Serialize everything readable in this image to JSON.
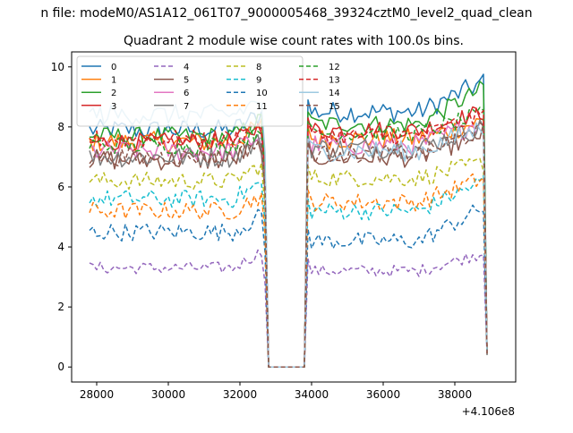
{
  "suptitle": "n file: modeM0/AS1A12_061T07_9000005468_39324cztM0_level2_quad_clean",
  "chart_data": {
    "type": "line",
    "title": "Quadrant 2 module wise count rates with 100.0s bins.",
    "xlabel": "",
    "ylabel": "",
    "x_offset_label": "+4.106e8",
    "xlim": [
      27300,
      39700
    ],
    "ylim": [
      -0.5,
      10.5
    ],
    "xticks": [
      28000,
      30000,
      32000,
      34000,
      36000,
      38000
    ],
    "xtick_labels": [
      "28000",
      "30000",
      "32000",
      "34000",
      "36000",
      "38000"
    ],
    "yticks": [
      0,
      2,
      4,
      6,
      8,
      10
    ],
    "ytick_labels": [
      "0",
      "2",
      "4",
      "6",
      "8",
      "10"
    ],
    "grid": false,
    "legend_position": "top-left",
    "legend_columns": 4,
    "segments": [
      [
        27800,
        32700
      ],
      [
        33900,
        38900
      ]
    ],
    "gap_x": [
      32800,
      33800
    ],
    "series": [
      {
        "name": "0",
        "color": "#1f77b4",
        "dash": "solid",
        "level1": 7.9,
        "level2": 8.5,
        "amp": 0.35,
        "end2": 9.5
      },
      {
        "name": "1",
        "color": "#ff7f0e",
        "dash": "solid",
        "level1": 7.5,
        "level2": 7.6,
        "amp": 0.35,
        "end2": 8.2
      },
      {
        "name": "2",
        "color": "#2ca02c",
        "dash": "solid",
        "level1": 7.7,
        "level2": 8.1,
        "amp": 0.3,
        "end2": 9.3
      },
      {
        "name": "3",
        "color": "#d62728",
        "dash": "solid",
        "level1": 7.5,
        "level2": 7.9,
        "amp": 0.3,
        "end2": 8.5
      },
      {
        "name": "4",
        "color": "#9467bd",
        "dash": "dashed",
        "level1": 3.3,
        "level2": 3.2,
        "amp": 0.2,
        "end2": 3.8
      },
      {
        "name": "5",
        "color": "#8c564b",
        "dash": "solid",
        "level1": 6.9,
        "level2": 7.0,
        "amp": 0.35,
        "end2": 7.8
      },
      {
        "name": "6",
        "color": "#e377c2",
        "dash": "solid",
        "level1": 7.2,
        "level2": 7.4,
        "amp": 0.35,
        "end2": 8.2
      },
      {
        "name": "7",
        "color": "#7f7f7f",
        "dash": "solid",
        "level1": 7.0,
        "level2": 7.3,
        "amp": 0.35,
        "end2": 8.0
      },
      {
        "name": "8",
        "color": "#bcbd22",
        "dash": "dashed",
        "level1": 6.2,
        "level2": 6.3,
        "amp": 0.3,
        "end2": 6.8
      },
      {
        "name": "9",
        "color": "#17becf",
        "dash": "dashed",
        "level1": 5.6,
        "level2": 5.2,
        "amp": 0.3,
        "end2": 6.2
      },
      {
        "name": "10",
        "color": "#1f77b4",
        "dash": "dashed",
        "level1": 4.5,
        "level2": 4.2,
        "amp": 0.3,
        "end2": 5.3
      },
      {
        "name": "11",
        "color": "#ff7f0e",
        "dash": "dashed",
        "level1": 5.2,
        "level2": 5.5,
        "amp": 0.3,
        "end2": 6.3
      },
      {
        "name": "12",
        "color": "#2ca02c",
        "dash": "dashed",
        "level1": 7.4,
        "level2": 7.8,
        "amp": 0.3,
        "end2": 8.4
      },
      {
        "name": "13",
        "color": "#d62728",
        "dash": "dashed",
        "level1": 7.6,
        "level2": 7.7,
        "amp": 0.3,
        "end2": 8.4
      },
      {
        "name": "14",
        "color": "#9ecae1",
        "dash": "solid",
        "level1": 8.4,
        "level2": 7.2,
        "amp": 0.35,
        "end2": 8.0
      },
      {
        "name": "15",
        "color": "#8c564b",
        "dash": "dashed",
        "level1": 7.0,
        "level2": 7.1,
        "amp": 0.3,
        "end2": 7.9
      }
    ]
  }
}
